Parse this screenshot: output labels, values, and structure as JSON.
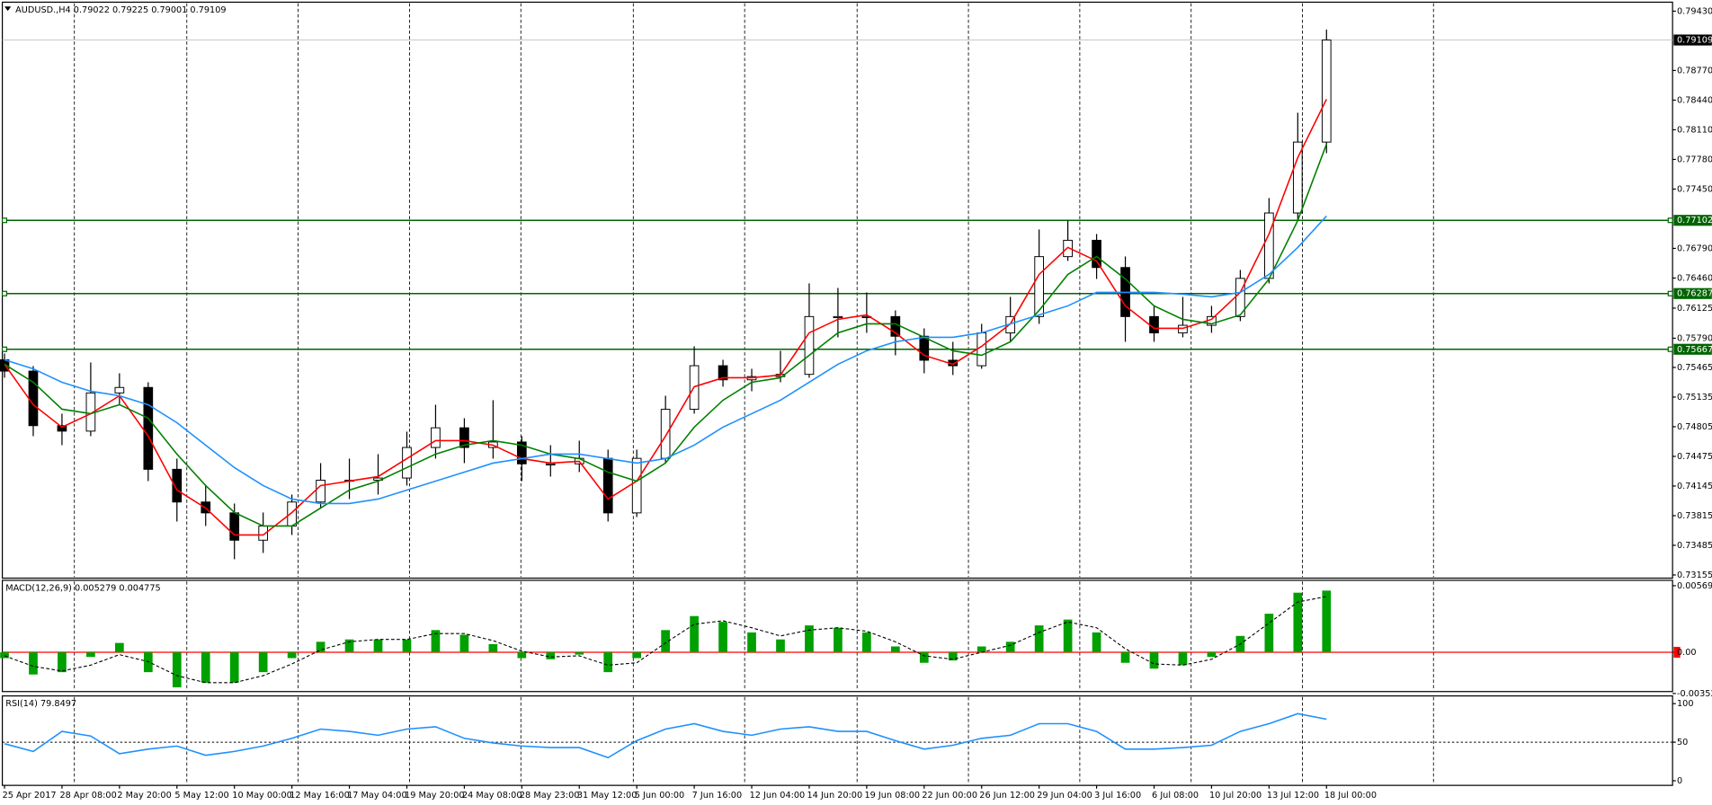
{
  "chart_data": [
    {
      "type": "candlestick",
      "title": "AUDUSD.,H4 0.79022 0.79225 0.79001 0.79109",
      "categories": [
        "25 Apr 2017",
        null,
        "28 Apr 08:00",
        null,
        "2 May 20:00",
        null,
        "5 May 12:00",
        null,
        "10 May 00:00",
        null,
        "12 May 16:00",
        null,
        "17 May 04:00",
        null,
        "19 May 20:00",
        null,
        "24 May 08:00",
        null,
        "28 May 23:00",
        null,
        "31 May 12:00",
        null,
        "5 Jun 00:00",
        null,
        "7 Jun 16:00",
        null,
        "12 Jun 04:00",
        null,
        "14 Jun 20:00",
        null,
        "19 Jun 08:00",
        null,
        "22 Jun 00:00",
        null,
        "26 Jun 12:00",
        null,
        "29 Jun 04:00",
        null,
        "3 Jul 16:00",
        null,
        "6 Jul 08:00",
        null,
        "10 Jul 20:00",
        null,
        "13 Jul 12:00",
        null,
        "18 Jul 00:00"
      ],
      "open": [
        0.7555,
        0.75424,
        0.74817,
        0.74756,
        0.75181,
        0.75242,
        0.74331,
        0.73967,
        0.73846,
        0.73542,
        0.737,
        0.73967,
        0.7421,
        0.7421,
        0.74234,
        0.74574,
        0.74793,
        0.74574,
        0.74635,
        0.74392,
        0.74392,
        0.74453,
        0.73846,
        0.74453,
        0.74999,
        0.75484,
        0.75327,
        0.75363,
        0.75388,
        0.76031,
        0.76031,
        0.76031,
        0.75812,
        0.75545,
        0.75484,
        0.75849,
        0.76031,
        0.76698,
        0.7688,
        0.76577,
        0.76031,
        0.75849,
        0.75934,
        0.76031,
        0.76456,
        0.77184,
        0.77973
      ],
      "high": [
        0.7562,
        0.7548,
        0.7495,
        0.7552,
        0.754,
        0.753,
        0.7445,
        0.7415,
        0.7395,
        0.7385,
        0.7405,
        0.744,
        0.7445,
        0.745,
        0.7475,
        0.7505,
        0.749,
        0.751,
        0.747,
        0.746,
        0.7465,
        0.7455,
        0.7455,
        0.7515,
        0.757,
        0.7555,
        0.7545,
        0.7565,
        0.764,
        0.7635,
        0.763,
        0.761,
        0.759,
        0.7575,
        0.7595,
        0.7625,
        0.77,
        0.771,
        0.7695,
        0.767,
        0.7615,
        0.7625,
        0.7615,
        0.7655,
        0.7735,
        0.783,
        0.79225
      ],
      "low": [
        0.7535,
        0.747,
        0.746,
        0.747,
        0.7505,
        0.742,
        0.7375,
        0.737,
        0.7333,
        0.734,
        0.736,
        0.739,
        0.74,
        0.7405,
        0.7415,
        0.7445,
        0.744,
        0.7445,
        0.742,
        0.7425,
        0.743,
        0.7375,
        0.738,
        0.744,
        0.7495,
        0.7525,
        0.752,
        0.753,
        0.7535,
        0.758,
        0.7585,
        0.756,
        0.754,
        0.7538,
        0.7545,
        0.7575,
        0.7595,
        0.7665,
        0.7645,
        0.7575,
        0.7575,
        0.758,
        0.7585,
        0.7598,
        0.764,
        0.771,
        0.7785
      ],
      "close": [
        0.75424,
        0.74817,
        0.74756,
        0.75181,
        0.75242,
        0.74331,
        0.73967,
        0.73846,
        0.73542,
        0.737,
        0.73967,
        0.7421,
        0.7421,
        0.74234,
        0.74574,
        0.74793,
        0.74574,
        0.74635,
        0.74392,
        0.74392,
        0.74453,
        0.73846,
        0.74453,
        0.74999,
        0.75484,
        0.75327,
        0.75363,
        0.75388,
        0.76031,
        0.76031,
        0.76031,
        0.75812,
        0.75545,
        0.75484,
        0.75849,
        0.76031,
        0.76698,
        0.7688,
        0.76577,
        0.76031,
        0.75849,
        0.75934,
        0.76031,
        0.76456,
        0.77184,
        0.77973,
        0.79109
      ],
      "up_color": "#ffffff",
      "down_color": "#000000",
      "series": [
        {
          "color": "#ff0000",
          "values": [
            0.755,
            0.7505,
            0.748,
            0.7495,
            0.7515,
            0.747,
            0.741,
            0.739,
            0.736,
            0.736,
            0.7385,
            0.7415,
            0.742,
            0.7425,
            0.7445,
            0.7465,
            0.7465,
            0.746,
            0.7445,
            0.744,
            0.7442,
            0.74,
            0.742,
            0.747,
            0.7525,
            0.7535,
            0.7535,
            0.7538,
            0.7585,
            0.76,
            0.7605,
            0.7585,
            0.756,
            0.755,
            0.757,
            0.7595,
            0.765,
            0.768,
            0.7665,
            0.7615,
            0.759,
            0.759,
            0.76,
            0.763,
            0.7695,
            0.778,
            0.7845
          ]
        },
        {
          "color": "#008000",
          "values": [
            0.755,
            0.753,
            0.75,
            0.7495,
            0.7505,
            0.749,
            0.745,
            0.7415,
            0.7385,
            0.737,
            0.737,
            0.739,
            0.741,
            0.742,
            0.7435,
            0.745,
            0.746,
            0.7465,
            0.746,
            0.745,
            0.7445,
            0.743,
            0.742,
            0.744,
            0.748,
            0.751,
            0.753,
            0.7535,
            0.756,
            0.7585,
            0.7595,
            0.7595,
            0.758,
            0.7565,
            0.756,
            0.7575,
            0.761,
            0.765,
            0.767,
            0.7645,
            0.7615,
            0.76,
            0.7595,
            0.7605,
            0.7645,
            0.771,
            0.7795
          ]
        },
        {
          "color": "#1e90ff",
          "values": [
            0.7555,
            0.7545,
            0.753,
            0.752,
            0.7515,
            0.7505,
            0.7485,
            0.746,
            0.7435,
            0.7415,
            0.74,
            0.7395,
            0.7395,
            0.74,
            0.741,
            0.742,
            0.743,
            0.744,
            0.7445,
            0.745,
            0.745,
            0.7445,
            0.744,
            0.7445,
            0.746,
            0.748,
            0.7495,
            0.751,
            0.753,
            0.755,
            0.7565,
            0.7575,
            0.758,
            0.758,
            0.7585,
            0.7595,
            0.7605,
            0.7615,
            0.763,
            0.763,
            0.763,
            0.7628,
            0.7625,
            0.763,
            0.765,
            0.768,
            0.7715
          ]
        }
      ],
      "hlines": [
        {
          "value": 0.77102,
          "color": "#006400"
        },
        {
          "value": 0.76287,
          "color": "#006400"
        },
        {
          "value": 0.75667,
          "color": "#006400"
        }
      ],
      "last_price": 0.79109,
      "ylim": [
        0.7312,
        0.7953
      ],
      "yticks": [
        {
          "value": 0.7943,
          "label": "0.79430"
        },
        {
          "value": 0.7877,
          "label": "0.78770"
        },
        {
          "value": 0.7844,
          "label": "0.78440"
        },
        {
          "value": 0.7811,
          "label": "0.78110"
        },
        {
          "value": 0.7778,
          "label": "0.77780"
        },
        {
          "value": 0.7745,
          "label": "0.77450"
        },
        {
          "value": 0.7679,
          "label": "0.76790"
        },
        {
          "value": 0.7646,
          "label": "0.76460"
        },
        0.76125,
        {
          "value": 0.7579,
          "label": "0.75790"
        },
        0.75465,
        0.75135,
        0.74805,
        0.74475,
        0.74145,
        0.73815,
        0.73485,
        0.73155
      ]
    },
    {
      "type": "macd",
      "title": "MACD(12,26,9) 0.005279 0.004775",
      "series": [
        {
          "type": "bar",
          "color": "#00a000",
          "values": [
            -0.0005,
            -0.0019,
            -0.0017,
            -0.0004,
            0.0008,
            -0.0017,
            -0.003,
            -0.0026,
            -0.0026,
            -0.0017,
            -0.0005,
            0.0009,
            0.0011,
            0.0011,
            0.0011,
            0.0019,
            0.0015,
            0.0007,
            -0.0005,
            -0.0006,
            -0.0002,
            -0.0017,
            -0.0005,
            0.0019,
            0.0031,
            0.0026,
            0.0017,
            0.0011,
            0.0023,
            0.0021,
            0.0017,
            0.0005,
            -0.0009,
            -0.0007,
            0.0005,
            0.0009,
            0.0023,
            0.0028,
            0.0017,
            -0.0009,
            -0.0014,
            -0.0011,
            -0.0004,
            0.0014,
            0.0033,
            0.0051,
            0.005279
          ]
        },
        {
          "type": "line",
          "color": "#000000",
          "dash": true,
          "values": [
            -0.0003,
            -0.0012,
            -0.0016,
            -0.0011,
            -0.0002,
            -0.0008,
            -0.002,
            -0.0026,
            -0.0026,
            -0.002,
            -0.001,
            0.0002,
            0.0009,
            0.0011,
            0.0011,
            0.0016,
            0.0016,
            0.001,
            0.0001,
            -0.0004,
            -0.0003,
            -0.0011,
            -0.0009,
            0.0008,
            0.0024,
            0.0027,
            0.0021,
            0.0014,
            0.0019,
            0.0021,
            0.0018,
            0.0009,
            -0.0003,
            -0.0006,
            0,
            0.0006,
            0.0017,
            0.0026,
            0.0021,
            0.0003,
            -0.001,
            -0.0011,
            -0.0006,
            0.0007,
            0.0025,
            0.0043,
            0.004775
          ]
        }
      ],
      "zero_color": "#ff0000",
      "ylim": [
        -0.00336,
        0.00616
      ],
      "yticks": [
        0.005698,
        {
          "value": 0,
          "label": "0.00"
        },
        -0.003528
      ]
    },
    {
      "type": "line",
      "title": "RSI(14) 79.8497",
      "series": [
        {
          "color": "#1e90ff",
          "values": [
            48,
            38,
            64,
            58,
            35,
            41,
            45,
            33,
            38,
            45,
            55,
            67,
            64,
            59,
            67,
            70,
            55,
            49,
            45,
            43,
            43,
            30,
            52,
            67,
            74,
            64,
            59,
            67,
            70,
            64,
            64,
            52,
            41,
            46,
            55,
            59,
            74,
            74,
            64,
            41,
            41,
            43,
            46,
            64,
            74,
            87,
            79.8497
          ]
        }
      ],
      "levels": [
        50
      ],
      "ylim": [
        -6,
        110
      ],
      "yticks": [
        100,
        50,
        0
      ]
    }
  ]
}
